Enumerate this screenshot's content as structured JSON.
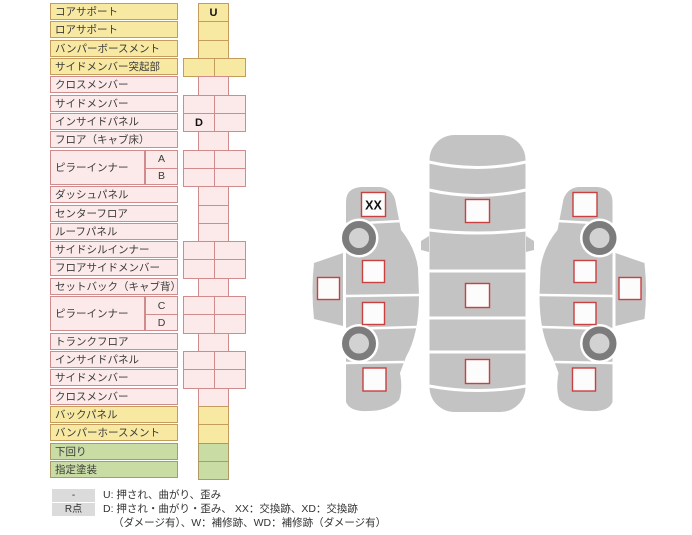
{
  "colors": {
    "yellow_bg": "#F8E9A2",
    "yellow_border": "#C49D5E",
    "pink_bg": "#FCEAEA",
    "pink_border": "#D08C8C",
    "green_bg": "#C8DCA4",
    "green_border": "#AE9A62",
    "car_body": "#C3C3C3",
    "box_fill": "#FCFCFC",
    "box_border": "#C84040",
    "wheel_ring": "#7C7C7C",
    "wheel_hub": "#D2D2D2",
    "legend_key_bg": "#DBDBDB"
  },
  "table": {
    "rows": [
      {
        "label": "コアサポート",
        "tone": "yellow",
        "cells": "single",
        "mark": "U"
      },
      {
        "label": "ロアサポート",
        "tone": "yellow",
        "cells": "single"
      },
      {
        "label": "バンパーボースメント",
        "tone": "yellow",
        "cells": "single"
      },
      {
        "label": "サイドメンバー突起部",
        "tone": "yellow",
        "cells": "double"
      },
      {
        "label": "クロスメンバー",
        "tone": "pink",
        "cells": "single"
      },
      {
        "label": "サイドメンバー",
        "tone": "pink",
        "cells": "double"
      },
      {
        "label": "インサイドパネル",
        "tone": "pink",
        "cells": "double",
        "mark": "D",
        "mark_cell": 0
      },
      {
        "label": "フロア（キャブ床）",
        "tone": "pink",
        "cells": "single"
      },
      {
        "label": "ピラーインナー",
        "sub": "A",
        "tone": "pink",
        "cells": "double",
        "group": "start"
      },
      {
        "sub": "B",
        "tone": "pink",
        "cells": "double",
        "group": "sub"
      },
      {
        "label": "ダッシュパネル",
        "tone": "pink",
        "cells": "single"
      },
      {
        "label": "センターフロア",
        "tone": "pink",
        "cells": "single"
      },
      {
        "label": "ルーフパネル",
        "tone": "pink",
        "cells": "single"
      },
      {
        "label": "サイドシルインナー",
        "tone": "pink",
        "cells": "double"
      },
      {
        "label": "フロアサイドメンバー",
        "tone": "pink",
        "cells": "double"
      },
      {
        "label": "セットバック（キャブ背）",
        "tone": "pink",
        "cells": "single"
      },
      {
        "label": "ピラーインナー",
        "sub": "C",
        "tone": "pink",
        "cells": "double",
        "group": "start"
      },
      {
        "sub": "D",
        "tone": "pink",
        "cells": "double",
        "group": "sub"
      },
      {
        "label": "トランクフロア",
        "tone": "pink",
        "cells": "single"
      },
      {
        "label": "インサイドパネル",
        "tone": "pink",
        "cells": "double"
      },
      {
        "label": "サイドメンバー",
        "tone": "pink",
        "cells": "double"
      },
      {
        "label": "クロスメンバー",
        "tone": "pink",
        "cells": "single"
      },
      {
        "label": "バックパネル",
        "tone": "yellow",
        "cells": "single"
      },
      {
        "label": "バンパーホースメント",
        "tone": "yellow",
        "cells": "single"
      },
      {
        "label": "下回り",
        "tone": "green",
        "cells": "single"
      },
      {
        "label": "指定塗装",
        "tone": "green",
        "cells": "single"
      }
    ]
  },
  "diagram": {
    "left_view_marks": {
      "front_pillar": "XX"
    }
  },
  "legend": {
    "keys": [
      "-",
      "R点"
    ],
    "lines": [
      "U: 押され、曲がり、歪み",
      "D: 押され・曲がり・歪み、 XX：交換跡、XD：交換跡",
      "（ダメージ有）、W：補修跡、WD：補修跡（ダメージ有）"
    ]
  }
}
